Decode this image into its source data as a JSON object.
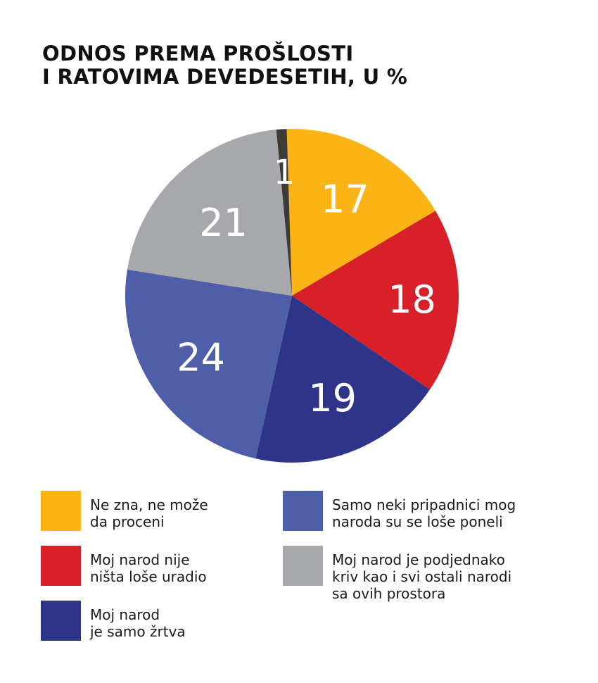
{
  "chart_data": {
    "type": "pie",
    "title": [
      "ODNOS PREMA PROŠLOSTI",
      "I RATOVIMA DEVEDESETIH, U %"
    ],
    "slices": [
      {
        "label": [
          "Ne zna, ne može",
          "da proceni"
        ],
        "value": 17,
        "value_label": "17",
        "color": "#FBB416"
      },
      {
        "label": [
          "Moj narod nije",
          "ništa loše uradio"
        ],
        "value": 18,
        "value_label": "18",
        "color": "#D72027"
      },
      {
        "label": [
          "Moj narod",
          "je samo žrtva"
        ],
        "value": 19,
        "value_label": "19",
        "color": "#2E3589"
      },
      {
        "label": [
          "Samo neki pripadnici mog",
          "naroda su se loše poneli"
        ],
        "value": 24,
        "value_label": "24",
        "color": "#4F5EA9"
      },
      {
        "label": [
          "Moj narod je podjednako",
          "kriv kao i svi ostali narodi",
          "sa ovih prostora"
        ],
        "value": 21,
        "value_label": "21",
        "color": "#A6A8AB"
      },
      {
        "label": [],
        "value": 1,
        "value_label": "1",
        "color": "#3D3A38"
      }
    ],
    "label_color": "#ffffff",
    "legend_placement": "bottom"
  }
}
